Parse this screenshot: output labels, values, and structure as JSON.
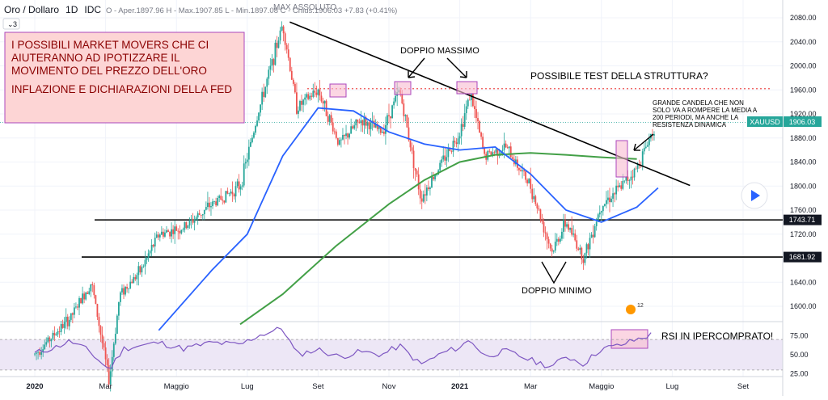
{
  "header": {
    "symbol": "Oro / Dollaro",
    "interval": "1D",
    "source": "IDC",
    "ohlc": "O - Aper.1897.96  H - Max.1907.85  L - Min.1897.08  C - Chius.1906.03  +7.83 (+0.41%)",
    "indicator_count": "3"
  },
  "price_badge": {
    "symbol": "XAUUSD",
    "value": "1906.03"
  },
  "annotations": {
    "box_line1": "I POSSIBILI MARKET MOVERS CHE CI",
    "box_line2": "AIUTERANNO AD IPOTIZZARE IL",
    "box_line3": "MOVIMENTO DEL PREZZO DELL'ORO",
    "box_line4": "INFLAZIONE E DICHIARAZIONI DELLA FED",
    "ath": "MAX ASSOLUTO",
    "double_top": "DOPPIO MASSIMO",
    "double_bottom": "DOPPIO MINIMO",
    "structure_test": "POSSIBILE TEST DELLA STRUTTURA?",
    "candle_line1": "GRANDE CANDELA CHE NON",
    "candle_line2": "SOLO VA A ROMPERE LA MEDIA A",
    "candle_line3": "200 PERIODI, MA ANCHE LA",
    "candle_line4": "RESISTENZA DINAMICA",
    "rsi_note": "RSI IN IPERCOMPRATO!",
    "event_badge": "12"
  },
  "colors": {
    "up": "#26a69a",
    "down": "#ef5350",
    "ma50": "#2962ff",
    "ma200": "#43a047",
    "rsi_line": "#7e57c2",
    "rsi_band": "#ede7f6",
    "highlight_fill": "#f8bbd0",
    "highlight_border": "#ab47bc",
    "note_box_fill": "#fdd5d5",
    "resistance_dotted": "#ef5350"
  },
  "chart_data": {
    "type": "candlestick",
    "ylim": [
      1560,
      2090
    ],
    "price_ticks": [
      "2080.00",
      "2040.00",
      "2000.00",
      "1960.00",
      "1920.00",
      "1880.00",
      "1840.00",
      "1800.00",
      "1760.00",
      "1720.00",
      "1680.00",
      "1640.00",
      "1600.00"
    ],
    "x_ticks": [
      "2020",
      "Mar",
      "Maggio",
      "Lug",
      "Set",
      "Nov",
      "2021",
      "Mar",
      "Maggio",
      "Lug",
      "Set"
    ],
    "horizontal_levels": [
      {
        "label": "1743.71",
        "value": 1743.71
      },
      {
        "label": "1681.92",
        "value": 1681.92
      }
    ],
    "dotted_resistance": 1962,
    "last_price": 1906.03,
    "price_series": [
      {
        "month": 0,
        "close": 1520
      },
      {
        "month": 1.0,
        "close": 1580
      },
      {
        "month": 1.6,
        "close": 1640
      },
      {
        "month": 2.1,
        "close": 1475
      },
      {
        "month": 2.4,
        "close": 1620
      },
      {
        "month": 3.0,
        "close": 1660
      },
      {
        "month": 3.5,
        "close": 1720
      },
      {
        "month": 4.2,
        "close": 1730
      },
      {
        "month": 5.0,
        "close": 1770
      },
      {
        "month": 5.8,
        "close": 1800
      },
      {
        "month": 6.3,
        "close": 1920
      },
      {
        "month": 7.0,
        "close": 2070
      },
      {
        "month": 7.4,
        "close": 1930
      },
      {
        "month": 8.0,
        "close": 1960
      },
      {
        "month": 8.6,
        "close": 1870
      },
      {
        "month": 9.2,
        "close": 1910
      },
      {
        "month": 9.8,
        "close": 1890
      },
      {
        "month": 10.3,
        "close": 1960
      },
      {
        "month": 10.9,
        "close": 1780
      },
      {
        "month": 11.5,
        "close": 1840
      },
      {
        "month": 12.0,
        "close": 1890
      },
      {
        "month": 12.3,
        "close": 1955
      },
      {
        "month": 12.7,
        "close": 1850
      },
      {
        "month": 13.3,
        "close": 1865
      },
      {
        "month": 14.0,
        "close": 1800
      },
      {
        "month": 14.6,
        "close": 1690
      },
      {
        "month": 15.0,
        "close": 1740
      },
      {
        "month": 15.5,
        "close": 1680
      },
      {
        "month": 16.0,
        "close": 1770
      },
      {
        "month": 16.5,
        "close": 1795
      },
      {
        "month": 17.0,
        "close": 1830
      },
      {
        "month": 17.5,
        "close": 1900
      }
    ],
    "ma50": [
      {
        "month": 3.5,
        "value": 1560
      },
      {
        "month": 5.0,
        "value": 1660
      },
      {
        "month": 6.0,
        "value": 1720
      },
      {
        "month": 7.0,
        "value": 1850
      },
      {
        "month": 8.0,
        "value": 1930
      },
      {
        "month": 9.0,
        "value": 1925
      },
      {
        "month": 10.0,
        "value": 1890
      },
      {
        "month": 11.0,
        "value": 1870
      },
      {
        "month": 12.0,
        "value": 1860
      },
      {
        "month": 13.0,
        "value": 1865
      },
      {
        "month": 14.0,
        "value": 1820
      },
      {
        "month": 15.0,
        "value": 1760
      },
      {
        "month": 16.0,
        "value": 1740
      },
      {
        "month": 17.0,
        "value": 1765
      },
      {
        "month": 17.6,
        "value": 1797
      }
    ],
    "ma200": [
      {
        "month": 5.8,
        "value": 1570
      },
      {
        "month": 7.0,
        "value": 1620
      },
      {
        "month": 8.5,
        "value": 1700
      },
      {
        "month": 10.0,
        "value": 1770
      },
      {
        "month": 11.0,
        "value": 1810
      },
      {
        "month": 12.0,
        "value": 1840
      },
      {
        "month": 13.0,
        "value": 1852
      },
      {
        "month": 14.0,
        "value": 1855
      },
      {
        "month": 15.0,
        "value": 1852
      },
      {
        "month": 16.0,
        "value": 1848
      },
      {
        "month": 17.0,
        "value": 1845
      }
    ],
    "trendline": [
      {
        "month": 7.2,
        "value": 2073
      },
      {
        "month": 18.5,
        "value": 1801
      }
    ],
    "rsi": {
      "ticks": [
        "75.00",
        "50.00",
        "25.00"
      ],
      "overbought": 70,
      "oversold": 30,
      "values": [
        {
          "month": 0,
          "value": 52
        },
        {
          "month": 0.6,
          "value": 60
        },
        {
          "month": 1.0,
          "value": 68
        },
        {
          "month": 1.5,
          "value": 56
        },
        {
          "month": 2.1,
          "value": 30
        },
        {
          "month": 2.5,
          "value": 58
        },
        {
          "month": 3.0,
          "value": 62
        },
        {
          "month": 3.5,
          "value": 66
        },
        {
          "month": 4.2,
          "value": 58
        },
        {
          "month": 5.0,
          "value": 66
        },
        {
          "month": 5.8,
          "value": 63
        },
        {
          "month": 6.3,
          "value": 75
        },
        {
          "month": 7.0,
          "value": 85
        },
        {
          "month": 7.4,
          "value": 50
        },
        {
          "month": 8.0,
          "value": 57
        },
        {
          "month": 8.6,
          "value": 47
        },
        {
          "month": 9.2,
          "value": 54
        },
        {
          "month": 9.8,
          "value": 50
        },
        {
          "month": 10.3,
          "value": 62
        },
        {
          "month": 10.9,
          "value": 37
        },
        {
          "month": 11.5,
          "value": 52
        },
        {
          "month": 12.0,
          "value": 60
        },
        {
          "month": 12.3,
          "value": 70
        },
        {
          "month": 12.7,
          "value": 48
        },
        {
          "month": 13.3,
          "value": 55
        },
        {
          "month": 14.0,
          "value": 43
        },
        {
          "month": 14.6,
          "value": 34
        },
        {
          "month": 15.0,
          "value": 48
        },
        {
          "month": 15.5,
          "value": 38
        },
        {
          "month": 16.0,
          "value": 58
        },
        {
          "month": 16.5,
          "value": 62
        },
        {
          "month": 17.0,
          "value": 70
        },
        {
          "month": 17.5,
          "value": 78
        }
      ]
    }
  }
}
